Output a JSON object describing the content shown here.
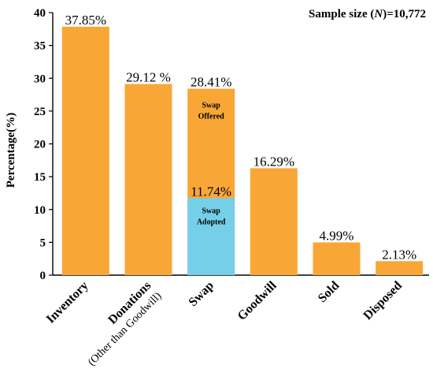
{
  "chart_data": {
    "type": "bar",
    "title": "",
    "annotation": {
      "prefix": "Sample size (",
      "italic": "N",
      "suffix": ")=10,772"
    },
    "ylabel": "Percentage(%)",
    "xlabel": "",
    "ylim": [
      0,
      40
    ],
    "yticks": [
      0,
      5,
      10,
      15,
      20,
      25,
      30,
      35,
      40
    ],
    "grid": false,
    "categories": [
      {
        "label": "Inventory",
        "sublabel": ""
      },
      {
        "label": "Donations",
        "sublabel": "(Other than Goodwill)"
      },
      {
        "label": "Swap",
        "sublabel": ""
      },
      {
        "label": "Goodwill",
        "sublabel": ""
      },
      {
        "label": "Sold",
        "sublabel": ""
      },
      {
        "label": "Disposed",
        "sublabel": ""
      }
    ],
    "values": [
      37.85,
      29.12,
      28.41,
      16.29,
      4.99,
      2.13
    ],
    "value_labels": [
      "37.85%",
      "29.12 %",
      "28.41%",
      "16.29%",
      "4.99%",
      "2.13%"
    ],
    "stacked_segment": {
      "category_index": 2,
      "value": 11.74,
      "value_label": "11.74%",
      "label_lines": [
        "Swap",
        "Adopted"
      ],
      "color": "#76cfe9"
    },
    "stacked_upper_label_lines": [
      "Swap",
      "Offered"
    ],
    "colors": {
      "bar": "#f8a736",
      "axis": "#000000"
    }
  }
}
